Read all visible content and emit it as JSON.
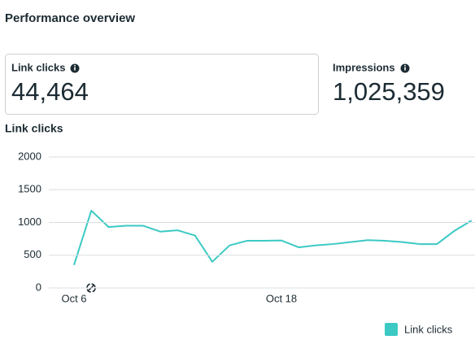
{
  "header": {
    "title": "Performance overview"
  },
  "metrics": [
    {
      "label": "Link clicks",
      "value": "44,464"
    },
    {
      "label": "Impressions",
      "value": "1,025,359"
    }
  ],
  "chart_data": {
    "type": "line",
    "title": "Link clicks",
    "categories": [
      "Oct 6",
      null,
      null,
      null,
      null,
      null,
      null,
      null,
      null,
      null,
      null,
      null,
      "Oct 18",
      null,
      null,
      null,
      null,
      null,
      null,
      null,
      null,
      null,
      null,
      null
    ],
    "series": [
      {
        "name": "Link clicks",
        "color": "#3cc9c4",
        "values": [
          350,
          1180,
          930,
          950,
          950,
          860,
          880,
          800,
          400,
          650,
          720,
          720,
          725,
          620,
          650,
          670,
          700,
          730,
          720,
          700,
          670,
          670,
          870,
          1030
        ]
      }
    ],
    "ylim": [
      0,
      2000
    ],
    "yticks": [
      0,
      500,
      1000,
      1500,
      2000
    ],
    "grid": true
  }
}
